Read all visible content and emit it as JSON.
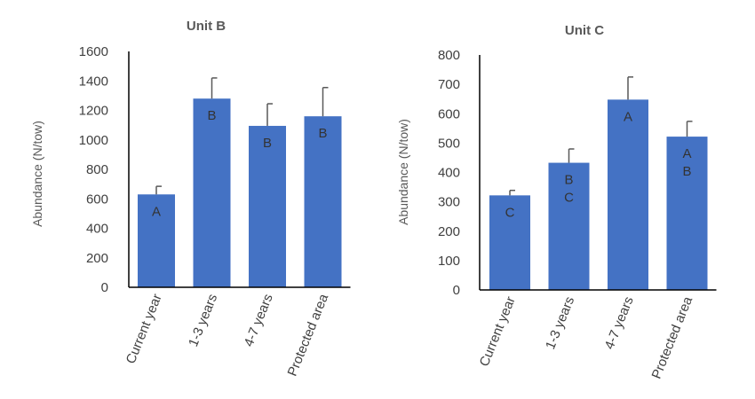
{
  "chart_data": [
    {
      "type": "bar",
      "title": "Unit B",
      "ylabel": "Abundance (N/tow)",
      "xlabel": "",
      "categories": [
        "Current year",
        "1-3 years",
        "4-7 years",
        "Protected area"
      ],
      "values": [
        630,
        1280,
        1095,
        1160
      ],
      "error_upper": [
        55,
        140,
        150,
        195
      ],
      "letters": [
        [
          "A"
        ],
        [
          "B"
        ],
        [
          "B"
        ],
        [
          "B"
        ]
      ],
      "ylim": [
        0,
        1600
      ],
      "yticks": [
        0,
        200,
        400,
        600,
        800,
        1000,
        1200,
        1400,
        1600
      ],
      "bar_color": "#4472C4",
      "grid": false,
      "legend": "none"
    },
    {
      "type": "bar",
      "title": "Unit C",
      "ylabel": "Abundance (N/tow)",
      "xlabel": "",
      "categories": [
        "Current year",
        "1-3 years",
        "4-7 years",
        "Protected area"
      ],
      "values": [
        322,
        433,
        648,
        522
      ],
      "error_upper": [
        17,
        47,
        77,
        52
      ],
      "letters": [
        [
          "C"
        ],
        [
          "B",
          "C"
        ],
        [
          "A"
        ],
        [
          "A",
          "B"
        ]
      ],
      "ylim": [
        0,
        800
      ],
      "yticks": [
        0,
        100,
        200,
        300,
        400,
        500,
        600,
        700,
        800
      ],
      "bar_color": "#4472C4",
      "grid": false,
      "legend": "none"
    }
  ]
}
